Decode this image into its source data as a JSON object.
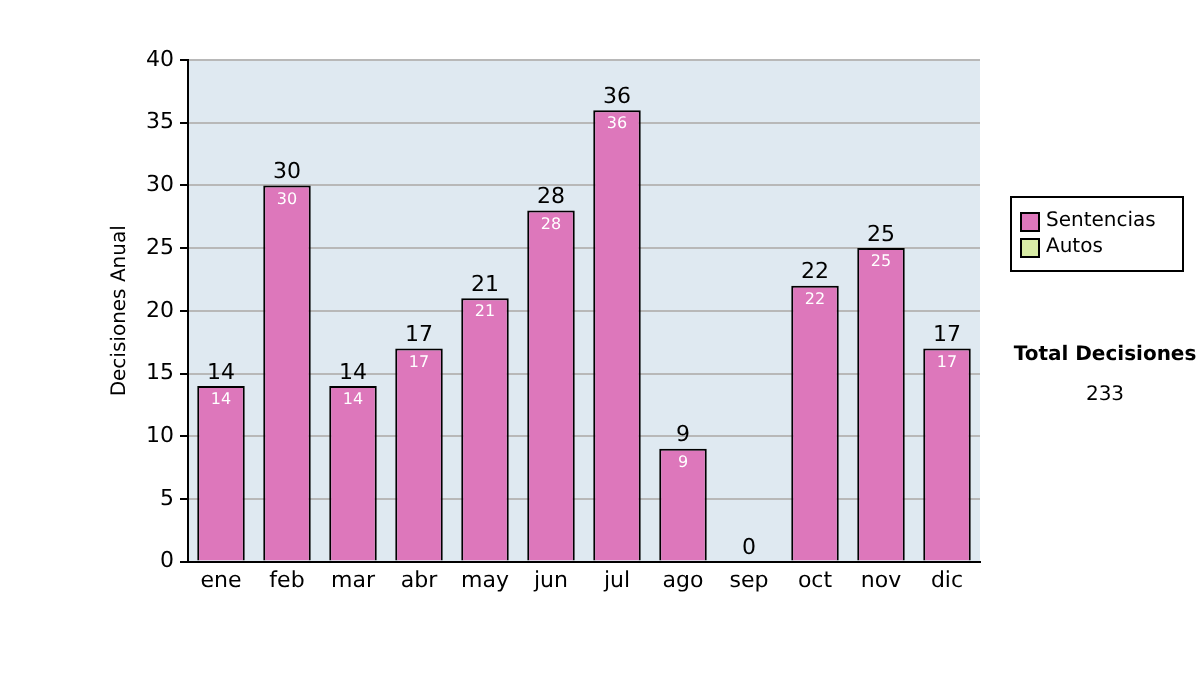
{
  "chart_data": {
    "type": "bar",
    "ylabel": "Decisiones Anual",
    "categories": [
      "ene",
      "feb",
      "mar",
      "abr",
      "may",
      "jun",
      "jul",
      "ago",
      "sep",
      "oct",
      "nov",
      "dic"
    ],
    "stacked": true,
    "series": [
      {
        "name": "Sentencias",
        "color": "#dd77bb",
        "values": [
          14,
          30,
          14,
          17,
          21,
          28,
          36,
          9,
          0,
          22,
          25,
          17
        ],
        "value_labels": [
          "14",
          "30",
          "14",
          "17",
          "21",
          "28",
          "36",
          "9",
          null,
          "22",
          "25",
          "17"
        ]
      },
      {
        "name": "Autos",
        "color": "#d9eda6",
        "values": [
          0,
          0,
          0,
          0,
          0,
          0,
          0,
          0,
          0,
          0,
          0,
          0
        ]
      }
    ],
    "totals": [
      "14",
      "30",
      "14",
      "17",
      "21",
      "28",
      "36",
      "9",
      "0",
      "22",
      "25",
      "17"
    ],
    "ylim": [
      0,
      40
    ],
    "yticks": [
      0,
      5,
      10,
      15,
      20,
      25,
      30,
      35,
      40
    ],
    "grid": "y",
    "legend": "right",
    "annotations": [
      "Total Decisiones",
      "233"
    ]
  }
}
